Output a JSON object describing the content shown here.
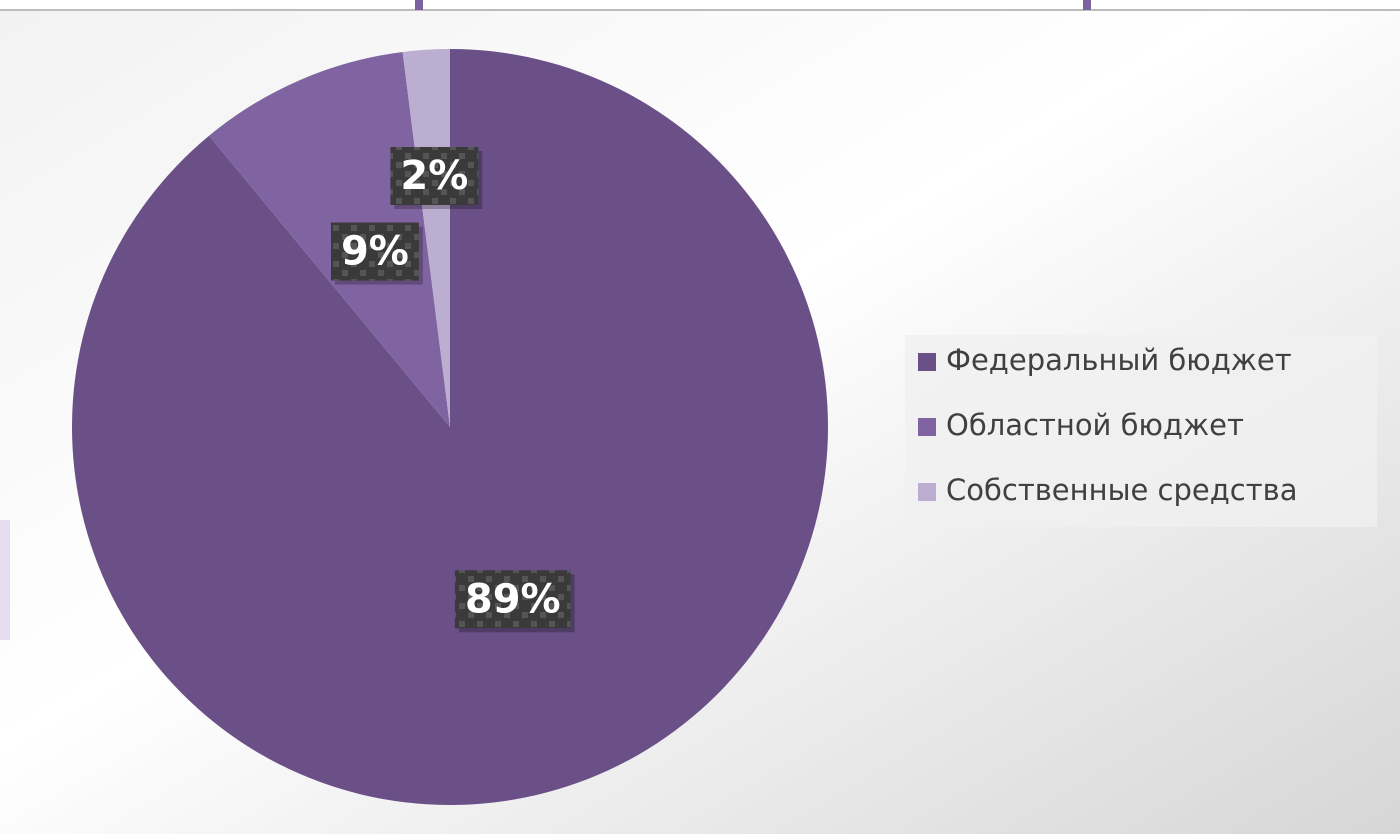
{
  "chart_data": {
    "type": "pie",
    "categories": [
      "Федеральный бюджет",
      "Областной бюджет",
      "Собственные средства"
    ],
    "values": [
      89,
      9,
      2
    ],
    "value_labels": [
      "89%",
      "9%",
      "2%"
    ],
    "colors": [
      "#6a5087",
      "#8064a2",
      "#bcaed0"
    ],
    "legend": "right"
  }
}
